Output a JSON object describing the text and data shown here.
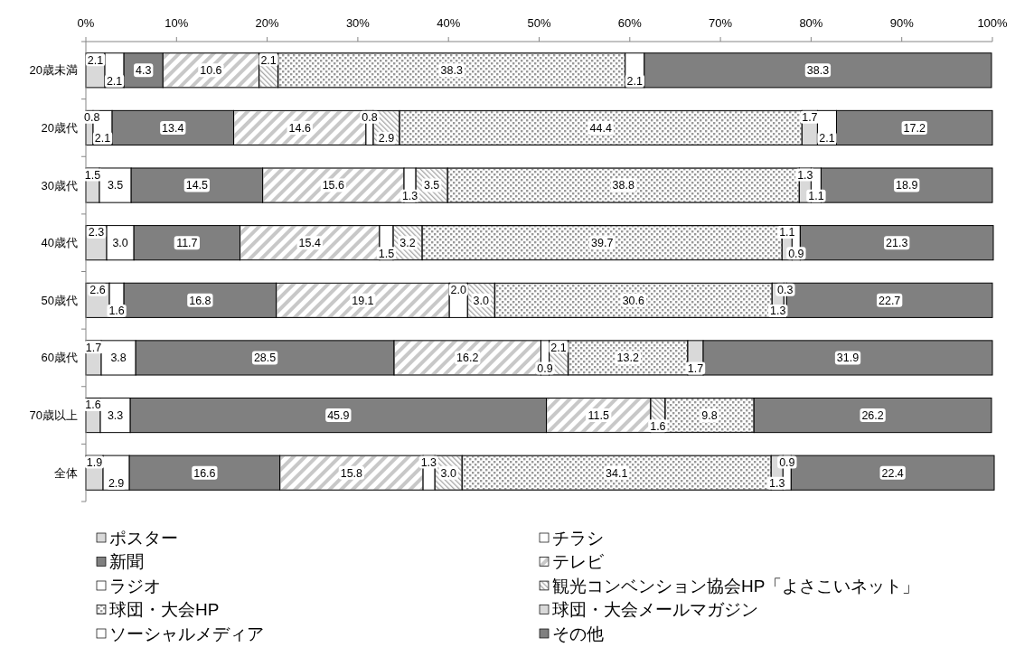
{
  "chart_data": {
    "type": "bar",
    "orientation": "horizontal",
    "stacked": true,
    "legend": "bottom",
    "categories": [
      "20歳未満",
      "20歳代",
      "30歳代",
      "40歳代",
      "50歳代",
      "60歳代",
      "70歳以上",
      "全体"
    ],
    "xlim": [
      0,
      100
    ],
    "xticks": [
      {
        "value": 0,
        "label": "0%"
      },
      {
        "value": 10,
        "label": "10%"
      },
      {
        "value": 20,
        "label": "20%"
      },
      {
        "value": 30,
        "label": "30%"
      },
      {
        "value": 40,
        "label": "40%"
      },
      {
        "value": 50,
        "label": "50%"
      },
      {
        "value": 60,
        "label": "60%"
      },
      {
        "value": 70,
        "label": "70%"
      },
      {
        "value": 80,
        "label": "80%"
      },
      {
        "value": 90,
        "label": "90%"
      },
      {
        "value": 100,
        "label": "100%"
      }
    ],
    "series": [
      {
        "name": "ポスター",
        "color": "#d9d9d9",
        "values": [
          2.1,
          0.8,
          1.5,
          2.3,
          2.6,
          1.7,
          1.6,
          1.9
        ],
        "value_labels": [
          "2.1",
          "0.8",
          "1.5",
          "2.3",
          "2.6",
          "1.7",
          "1.6",
          "1.9"
        ]
      },
      {
        "name": "チラシ",
        "color": "#ffffff",
        "values": [
          2.1,
          2.1,
          3.5,
          3.0,
          1.6,
          3.8,
          3.3,
          2.9
        ],
        "value_labels": [
          "2.1",
          "2.1",
          "3.5",
          "3.0",
          "1.6",
          "3.8",
          "3.3",
          "2.9"
        ]
      },
      {
        "name": "新聞",
        "color": "#808080",
        "values": [
          4.3,
          13.4,
          14.5,
          11.7,
          16.8,
          28.5,
          45.9,
          16.6
        ],
        "value_labels": [
          "4.3",
          "13.4",
          "14.5",
          "11.7",
          "16.8",
          "28.5",
          "45.9",
          "16.6"
        ]
      },
      {
        "name": "テレビ",
        "color": "#c8c8c8",
        "values": [
          10.6,
          14.6,
          15.6,
          15.4,
          19.1,
          16.2,
          11.5,
          15.8
        ],
        "value_labels": [
          "10.6",
          "14.6",
          "15.6",
          "15.4",
          "19.1",
          "16.2",
          "11.5",
          "15.8"
        ]
      },
      {
        "name": "ラジオ",
        "color": "#ffffff",
        "values": [
          null,
          0.8,
          1.3,
          1.5,
          2.0,
          0.9,
          null,
          1.3
        ],
        "value_labels": [
          null,
          "0.8",
          "1.3",
          "1.5",
          "2.0",
          "0.9",
          null,
          "1.3"
        ]
      },
      {
        "name": "観光コンベンション協会HP「よさこいネット」",
        "color": "#a6a6a6",
        "values": [
          2.1,
          2.9,
          3.5,
          3.2,
          3.0,
          2.1,
          1.6,
          3.0
        ],
        "value_labels": [
          "2.1",
          "2.9",
          "3.5",
          "3.2",
          "3.0",
          "2.1",
          "1.6",
          "3.0"
        ]
      },
      {
        "name": "球団・大会HP",
        "color": "#999999",
        "values": [
          38.3,
          44.4,
          38.8,
          39.7,
          30.6,
          13.2,
          9.8,
          34.1
        ],
        "value_labels": [
          "38.3",
          "44.4",
          "38.8",
          "39.7",
          "30.6",
          "13.2",
          "9.8",
          "34.1"
        ]
      },
      {
        "name": "球団・大会メールマガジン",
        "color": "#d9d9d9",
        "values": [
          null,
          1.7,
          1.3,
          1.1,
          1.3,
          1.7,
          null,
          1.3
        ],
        "value_labels": [
          null,
          "1.7",
          "1.3",
          "1.1",
          "1.3",
          "1.7",
          null,
          "1.3"
        ]
      },
      {
        "name": "ソーシャルメディア",
        "color": "#ffffff",
        "values": [
          2.1,
          2.1,
          1.1,
          0.9,
          0.3,
          null,
          null,
          0.9
        ],
        "value_labels": [
          "2.1",
          "2.1",
          "1.1",
          "0.9",
          "0.3",
          null,
          null,
          "0.9"
        ]
      },
      {
        "name": "その他",
        "color": "#808080",
        "values": [
          38.3,
          17.2,
          18.9,
          21.3,
          22.7,
          31.9,
          26.2,
          22.4
        ],
        "value_labels": [
          "38.3",
          "17.2",
          "18.9",
          "21.3",
          "22.7",
          "31.9",
          "26.2",
          "22.4"
        ]
      }
    ]
  }
}
